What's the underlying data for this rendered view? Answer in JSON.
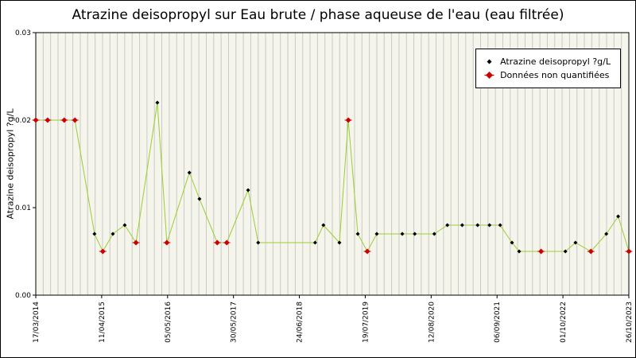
{
  "chart_data": {
    "type": "line",
    "title": "Atrazine deisopropyl sur Eau brute / phase aqueuse de l'eau (eau filtrée)",
    "ylabel": "Atrazine deisopropyl ?g/L",
    "xlabel": "",
    "ylim": [
      0.0,
      0.03
    ],
    "yticks": [
      "0.00",
      "0.01",
      "0.02",
      "0.03"
    ],
    "xtick_labels": [
      "17/03/2014",
      "11/04/2015",
      "05/05/2016",
      "30/05/2017",
      "24/06/2018",
      "19/07/2019",
      "12/08/2020",
      "06/09/2021",
      "01/10/2022",
      "26/10/2023"
    ],
    "legend": [
      {
        "label": "Atrazine deisopropyl ?g/L",
        "marker": "black-diamond"
      },
      {
        "label": "Données non quantifiées",
        "marker": "red-diamond-strike"
      }
    ],
    "legend_position": "top-right",
    "grid": {
      "vline_count": 80,
      "hlines": false
    },
    "colors": {
      "line": "#9acd32",
      "quantified": "#000000",
      "non_quantified": "#cc0000",
      "plot_bg": "#f5f5ec",
      "grid": "#c9c9c9",
      "axis": "#000000"
    },
    "points": [
      [
        0.0,
        0.02,
        "nq"
      ],
      [
        0.02,
        0.02,
        "nq"
      ],
      [
        0.048,
        0.02,
        "nq"
      ],
      [
        0.066,
        0.02,
        "nq"
      ],
      [
        0.099,
        0.007,
        "q"
      ],
      [
        0.113,
        0.005,
        "nq"
      ],
      [
        0.13,
        0.007,
        "q"
      ],
      [
        0.15,
        0.008,
        "q"
      ],
      [
        0.169,
        0.006,
        "nq"
      ],
      [
        0.205,
        0.022,
        "q"
      ],
      [
        0.221,
        0.006,
        "nq"
      ],
      [
        0.259,
        0.014,
        "q"
      ],
      [
        0.276,
        0.011,
        "q"
      ],
      [
        0.306,
        0.006,
        "nq"
      ],
      [
        0.322,
        0.006,
        "nq"
      ],
      [
        0.358,
        0.012,
        "q"
      ],
      [
        0.375,
        0.006,
        "q"
      ],
      [
        0.471,
        0.006,
        "q"
      ],
      [
        0.485,
        0.008,
        "q"
      ],
      [
        0.512,
        0.006,
        "q"
      ],
      [
        0.527,
        0.02,
        "nq"
      ],
      [
        0.543,
        0.007,
        "q"
      ],
      [
        0.559,
        0.005,
        "nq"
      ],
      [
        0.575,
        0.007,
        "q"
      ],
      [
        0.618,
        0.007,
        "q"
      ],
      [
        0.639,
        0.007,
        "q"
      ],
      [
        0.672,
        0.007,
        "q"
      ],
      [
        0.694,
        0.008,
        "q"
      ],
      [
        0.719,
        0.008,
        "q"
      ],
      [
        0.745,
        0.008,
        "q"
      ],
      [
        0.765,
        0.008,
        "q"
      ],
      [
        0.783,
        0.008,
        "q"
      ],
      [
        0.803,
        0.006,
        "q"
      ],
      [
        0.815,
        0.005,
        "q"
      ],
      [
        0.852,
        0.005,
        "nq"
      ],
      [
        0.893,
        0.005,
        "q"
      ],
      [
        0.91,
        0.006,
        "q"
      ],
      [
        0.936,
        0.005,
        "nq"
      ],
      [
        0.962,
        0.007,
        "q"
      ],
      [
        0.982,
        0.009,
        "q"
      ],
      [
        1.0,
        0.005,
        "nq"
      ]
    ]
  }
}
